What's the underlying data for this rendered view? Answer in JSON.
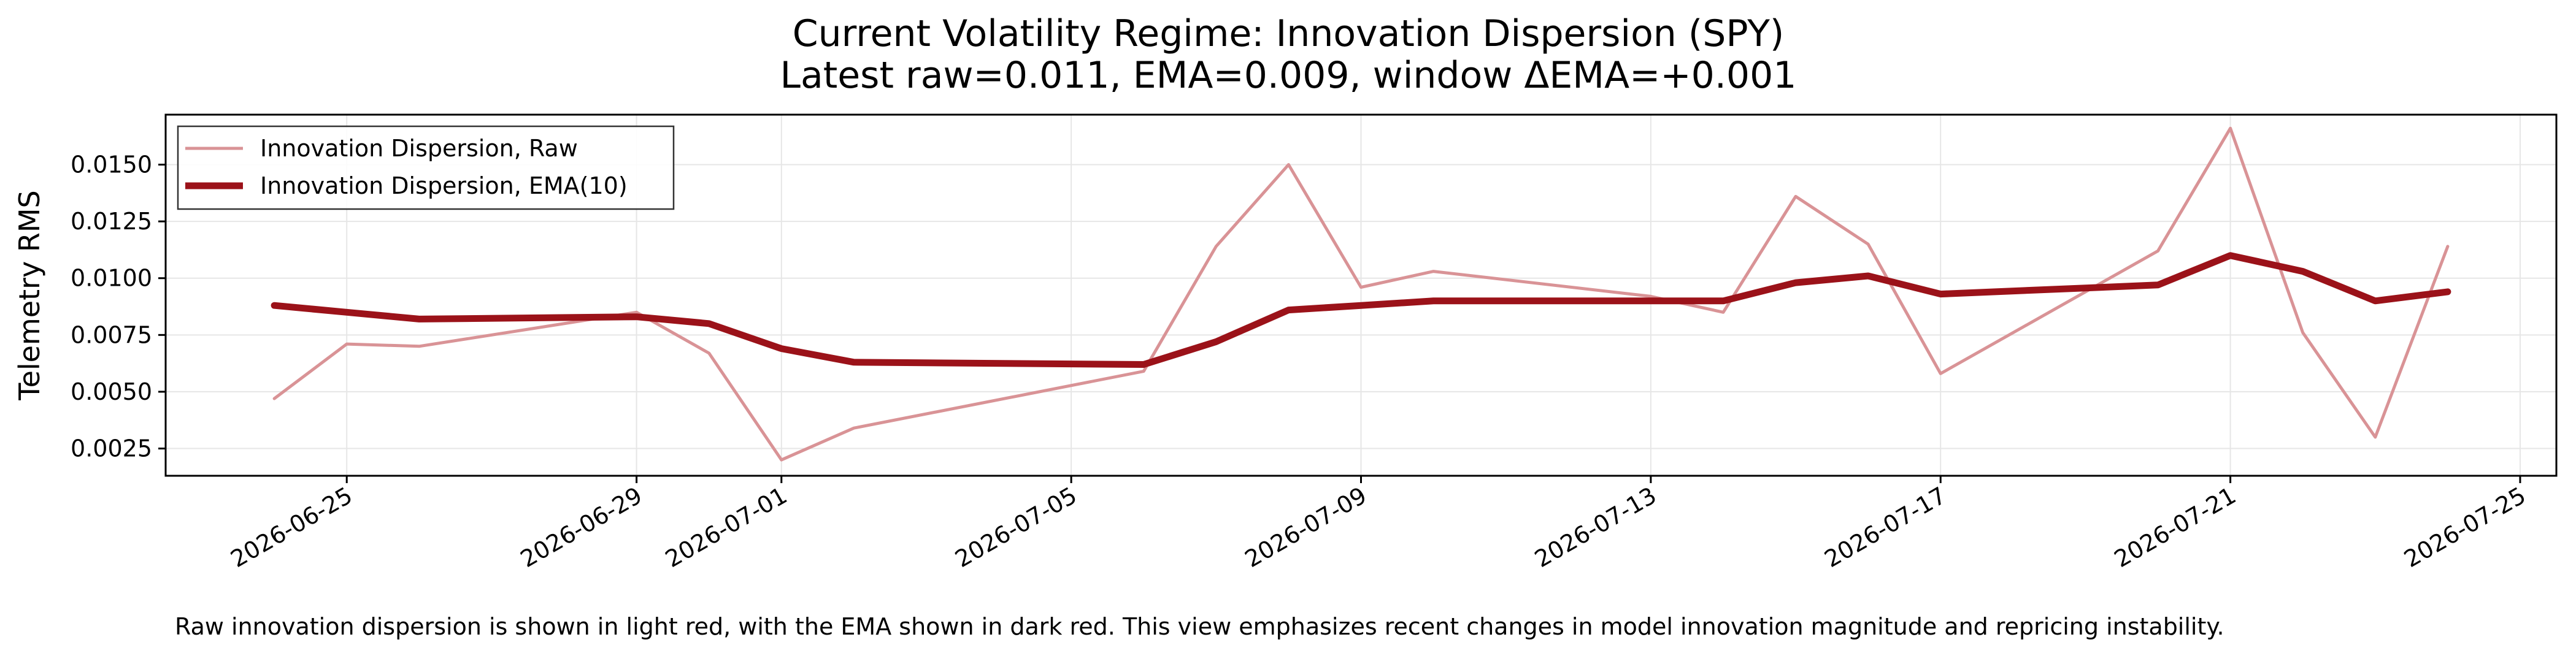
{
  "chart_data": {
    "type": "line",
    "title": "Current Volatility Regime: Innovation Dispersion (SPY)",
    "subtitle": "Latest raw=0.011, EMA=0.009, window ΔEMA=+0.001",
    "xlabel": "",
    "ylabel": "Telemetry RMS",
    "xlim": [
      "2026-06-22T12:00",
      "2026-07-25T12:00"
    ],
    "ylim": [
      0.0013,
      0.0172
    ],
    "y_ticks": [
      0.0025,
      0.005,
      0.0075,
      0.01,
      0.0125,
      0.015
    ],
    "y_tick_labels": [
      "0.0025",
      "0.0050",
      "0.0075",
      "0.0100",
      "0.0125",
      "0.0150"
    ],
    "x_ticks": [
      "2026-06-25",
      "2026-06-29",
      "2026-07-01",
      "2026-07-05",
      "2026-07-09",
      "2026-07-13",
      "2026-07-17",
      "2026-07-21",
      "2026-07-25"
    ],
    "x_tick_labels": [
      "2026-06-25",
      "2026-06-29",
      "2026-07-01",
      "2026-07-05",
      "2026-07-09",
      "2026-07-13",
      "2026-07-17",
      "2026-07-21",
      "2026-07-25"
    ],
    "grid": true,
    "legend_position": "top-left",
    "series": [
      {
        "name": "Innovation Dispersion, Raw",
        "color": "#d99396",
        "x": [
          "2026-06-24",
          "2026-06-25",
          "2026-06-26",
          "2026-06-29",
          "2026-06-30",
          "2026-07-01",
          "2026-07-02",
          "2026-07-06",
          "2026-07-07",
          "2026-07-08",
          "2026-07-09",
          "2026-07-10",
          "2026-07-13",
          "2026-07-14",
          "2026-07-15",
          "2026-07-16",
          "2026-07-17",
          "2026-07-20",
          "2026-07-21",
          "2026-07-22",
          "2026-07-23",
          "2026-07-24"
        ],
        "values": [
          0.0047,
          0.0071,
          0.007,
          0.0085,
          0.0067,
          0.002,
          0.0034,
          0.0059,
          0.0114,
          0.015,
          0.0096,
          0.0103,
          0.0092,
          0.0085,
          0.0136,
          0.0115,
          0.0058,
          0.0112,
          0.0166,
          0.0076,
          0.003,
          0.0114
        ]
      },
      {
        "name": "Innovation Dispersion, EMA(10)",
        "color": "#9b1219",
        "x": [
          "2026-06-24",
          "2026-06-25",
          "2026-06-26",
          "2026-06-29",
          "2026-06-30",
          "2026-07-01",
          "2026-07-02",
          "2026-07-06",
          "2026-07-07",
          "2026-07-08",
          "2026-07-09",
          "2026-07-10",
          "2026-07-13",
          "2026-07-14",
          "2026-07-15",
          "2026-07-16",
          "2026-07-17",
          "2026-07-20",
          "2026-07-21",
          "2026-07-22",
          "2026-07-23",
          "2026-07-24"
        ],
        "values": [
          0.0088,
          0.0085,
          0.0082,
          0.0083,
          0.008,
          0.0069,
          0.0063,
          0.0062,
          0.0072,
          0.0086,
          0.0088,
          0.009,
          0.009,
          0.009,
          0.0098,
          0.0101,
          0.0093,
          0.0097,
          0.011,
          0.0103,
          0.009,
          0.0094
        ]
      }
    ],
    "caption": "Raw innovation dispersion is shown in light red, with the EMA shown in dark red. This view emphasizes recent changes in model innovation magnitude and repricing instability."
  }
}
